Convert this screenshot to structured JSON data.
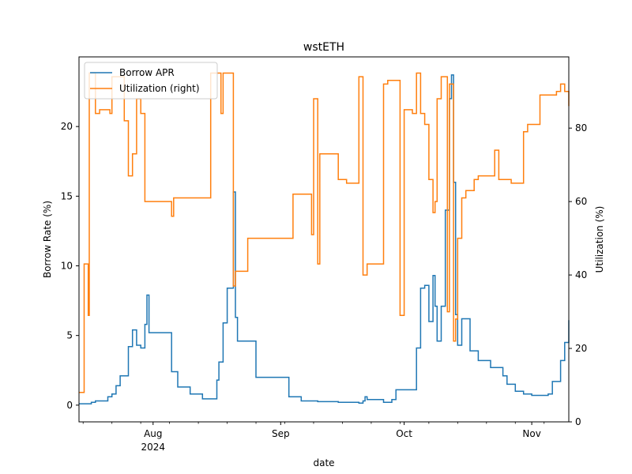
{
  "chart_data": {
    "type": "line",
    "title": "wstETH",
    "xlabel": "date",
    "ylabel_left": "Borrow Rate (%)",
    "ylabel_right": "Utilization (%)",
    "x_range": [
      "2024-07-14",
      "2024-11-10"
    ],
    "ylim_left": [
      -1.2,
      25.0
    ],
    "ylim_right": [
      0,
      99.4
    ],
    "yticks_left": [
      0,
      5,
      10,
      15,
      20
    ],
    "yticks_right": [
      0,
      20,
      40,
      60,
      80
    ],
    "xticks_major": [
      {
        "date": "2024-08-01",
        "label": "Aug",
        "sublabel": "2024"
      },
      {
        "date": "2024-09-01",
        "label": "Sep",
        "sublabel": ""
      },
      {
        "date": "2024-10-01",
        "label": "Oct",
        "sublabel": ""
      },
      {
        "date": "2024-11-01",
        "label": "Nov",
        "sublabel": ""
      }
    ],
    "xticks_minor": [
      "2024-07-15",
      "2024-07-22",
      "2024-07-29",
      "2024-08-05",
      "2024-08-12",
      "2024-08-19",
      "2024-08-26",
      "2024-09-02",
      "2024-09-09",
      "2024-09-16",
      "2024-09-23",
      "2024-09-30",
      "2024-10-07",
      "2024-10-14",
      "2024-10-21",
      "2024-10-28",
      "2024-11-04"
    ],
    "grid": false,
    "legend": {
      "position": "upper-left",
      "entries": [
        "Borrow APR",
        "Utilization (right)"
      ]
    },
    "series": [
      {
        "name": "Borrow APR",
        "axis": "left",
        "color": "#1f77b4",
        "points": [
          [
            "2024-07-14",
            0.1
          ],
          [
            "2024-07-16",
            0.1
          ],
          [
            "2024-07-17",
            0.2
          ],
          [
            "2024-07-18",
            0.3
          ],
          [
            "2024-07-20",
            0.3
          ],
          [
            "2024-07-21",
            0.6
          ],
          [
            "2024-07-22",
            0.8
          ],
          [
            "2024-07-23",
            1.4
          ],
          [
            "2024-07-24",
            2.1
          ],
          [
            "2024-07-25",
            2.1
          ],
          [
            "2024-07-26",
            4.2
          ],
          [
            "2024-07-27",
            5.4
          ],
          [
            "2024-07-28",
            4.3
          ],
          [
            "2024-07-29",
            4.1
          ],
          [
            "2024-07-30",
            5.8
          ],
          [
            "2024-07-30T12",
            7.9
          ],
          [
            "2024-07-31",
            5.2
          ],
          [
            "2024-08-05",
            5.2
          ],
          [
            "2024-08-05T12",
            2.4
          ],
          [
            "2024-08-06",
            2.4
          ],
          [
            "2024-08-07",
            1.3
          ],
          [
            "2024-08-09",
            1.3
          ],
          [
            "2024-08-10",
            0.8
          ],
          [
            "2024-08-12",
            0.8
          ],
          [
            "2024-08-13",
            0.45
          ],
          [
            "2024-08-16",
            0.45
          ],
          [
            "2024-08-16T12",
            1.8
          ],
          [
            "2024-08-17",
            3.1
          ],
          [
            "2024-08-18",
            5.9
          ],
          [
            "2024-08-19",
            8.4
          ],
          [
            "2024-08-20",
            8.4
          ],
          [
            "2024-08-20T12",
            15.3
          ],
          [
            "2024-08-21",
            6.3
          ],
          [
            "2024-08-21T12",
            4.6
          ],
          [
            "2024-08-25",
            4.6
          ],
          [
            "2024-08-26",
            2.0
          ],
          [
            "2024-09-02",
            2.0
          ],
          [
            "2024-09-03",
            0.6
          ],
          [
            "2024-09-05",
            0.6
          ],
          [
            "2024-09-06",
            0.3
          ],
          [
            "2024-09-10",
            0.25
          ],
          [
            "2024-09-13",
            0.25
          ],
          [
            "2024-09-15",
            0.2
          ],
          [
            "2024-09-20",
            0.15
          ],
          [
            "2024-09-21",
            0.3
          ],
          [
            "2024-09-21T12",
            0.6
          ],
          [
            "2024-09-22",
            0.4
          ],
          [
            "2024-09-25",
            0.4
          ],
          [
            "2024-09-26",
            0.2
          ],
          [
            "2024-09-28",
            0.4
          ],
          [
            "2024-09-29",
            1.1
          ],
          [
            "2024-09-30",
            1.1
          ],
          [
            "2024-10-01",
            1.1
          ],
          [
            "2024-10-02",
            1.1
          ],
          [
            "2024-10-03",
            1.1
          ],
          [
            "2024-10-04",
            4.1
          ],
          [
            "2024-10-05",
            8.4
          ],
          [
            "2024-10-06",
            8.6
          ],
          [
            "2024-10-07",
            6.0
          ],
          [
            "2024-10-08",
            9.3
          ],
          [
            "2024-10-08T12",
            7.1
          ],
          [
            "2024-10-09",
            4.6
          ],
          [
            "2024-10-10",
            7.1
          ],
          [
            "2024-10-11",
            14.0
          ],
          [
            "2024-10-12",
            22.0
          ],
          [
            "2024-10-12T12",
            23.7
          ],
          [
            "2024-10-13",
            16.0
          ],
          [
            "2024-10-13T12",
            6.5
          ],
          [
            "2024-10-14",
            4.3
          ],
          [
            "2024-10-15",
            6.2
          ],
          [
            "2024-10-17",
            3.9
          ],
          [
            "2024-10-19",
            3.2
          ],
          [
            "2024-10-22",
            2.7
          ],
          [
            "2024-10-25",
            2.1
          ],
          [
            "2024-10-26",
            1.5
          ],
          [
            "2024-10-28",
            1.0
          ],
          [
            "2024-10-30",
            0.8
          ],
          [
            "2024-11-01",
            0.7
          ],
          [
            "2024-11-05",
            0.8
          ],
          [
            "2024-11-06",
            1.7
          ],
          [
            "2024-11-07",
            1.7
          ],
          [
            "2024-11-08",
            3.2
          ],
          [
            "2024-11-09",
            4.5
          ],
          [
            "2024-11-10",
            6.1
          ]
        ]
      },
      {
        "name": "Utilization (right)",
        "axis": "right",
        "color": "#ff7f0e",
        "points": [
          [
            "2024-07-14",
            8
          ],
          [
            "2024-07-15",
            8
          ],
          [
            "2024-07-15T06",
            43
          ],
          [
            "2024-07-16",
            43
          ],
          [
            "2024-07-16T06",
            29
          ],
          [
            "2024-07-16T12",
            95
          ],
          [
            "2024-07-17",
            95
          ],
          [
            "2024-07-18",
            84
          ],
          [
            "2024-07-19",
            85
          ],
          [
            "2024-07-21",
            85
          ],
          [
            "2024-07-21T12",
            84
          ],
          [
            "2024-07-22",
            94
          ],
          [
            "2024-07-24",
            94
          ],
          [
            "2024-07-25",
            82
          ],
          [
            "2024-07-26",
            67
          ],
          [
            "2024-07-27",
            73
          ],
          [
            "2024-07-28",
            88
          ],
          [
            "2024-07-29",
            84
          ],
          [
            "2024-07-30",
            60
          ],
          [
            "2024-07-31",
            60
          ],
          [
            "2024-08-05",
            60
          ],
          [
            "2024-08-05T12",
            56
          ],
          [
            "2024-08-06",
            61
          ],
          [
            "2024-08-09",
            61
          ],
          [
            "2024-08-10",
            61
          ],
          [
            "2024-08-14",
            61
          ],
          [
            "2024-08-15",
            95
          ],
          [
            "2024-08-17",
            95
          ],
          [
            "2024-08-17T12",
            84
          ],
          [
            "2024-08-18",
            95
          ],
          [
            "2024-08-20",
            95
          ],
          [
            "2024-08-20T12",
            37
          ],
          [
            "2024-08-21",
            41
          ],
          [
            "2024-08-24",
            50
          ],
          [
            "2024-08-25",
            50
          ],
          [
            "2024-08-30",
            50
          ],
          [
            "2024-09-01",
            50
          ],
          [
            "2024-09-02",
            50
          ],
          [
            "2024-09-03",
            50
          ],
          [
            "2024-09-04",
            62
          ],
          [
            "2024-09-08",
            62
          ],
          [
            "2024-09-08T12",
            51
          ],
          [
            "2024-09-09",
            88
          ],
          [
            "2024-09-10",
            43
          ],
          [
            "2024-09-10T12",
            73
          ],
          [
            "2024-09-14",
            73
          ],
          [
            "2024-09-15",
            66
          ],
          [
            "2024-09-17",
            65
          ],
          [
            "2024-09-19",
            65
          ],
          [
            "2024-09-20",
            94
          ],
          [
            "2024-09-21",
            40
          ],
          [
            "2024-09-22",
            43
          ],
          [
            "2024-09-24",
            43
          ],
          [
            "2024-09-26",
            92
          ],
          [
            "2024-09-27",
            93
          ],
          [
            "2024-09-29",
            93
          ],
          [
            "2024-09-30",
            29
          ],
          [
            "2024-10-01",
            85
          ],
          [
            "2024-10-02",
            85
          ],
          [
            "2024-10-03",
            84
          ],
          [
            "2024-10-04",
            95
          ],
          [
            "2024-10-05",
            84
          ],
          [
            "2024-10-06",
            81
          ],
          [
            "2024-10-07",
            66
          ],
          [
            "2024-10-08",
            57
          ],
          [
            "2024-10-08T12",
            60
          ],
          [
            "2024-10-09",
            88
          ],
          [
            "2024-10-10",
            94
          ],
          [
            "2024-10-11",
            94
          ],
          [
            "2024-10-11T12",
            30
          ],
          [
            "2024-10-12",
            92
          ],
          [
            "2024-10-13",
            22
          ],
          [
            "2024-10-13T12",
            28
          ],
          [
            "2024-10-14",
            50
          ],
          [
            "2024-10-15",
            61
          ],
          [
            "2024-10-16",
            63
          ],
          [
            "2024-10-17",
            63
          ],
          [
            "2024-10-18",
            66
          ],
          [
            "2024-10-19",
            67
          ],
          [
            "2024-10-22",
            67
          ],
          [
            "2024-10-23",
            74
          ],
          [
            "2024-10-24",
            66
          ],
          [
            "2024-10-27",
            65
          ],
          [
            "2024-10-28",
            65
          ],
          [
            "2024-10-29",
            65
          ],
          [
            "2024-10-30",
            79
          ],
          [
            "2024-10-31",
            81
          ],
          [
            "2024-11-01",
            81
          ],
          [
            "2024-11-02",
            81
          ],
          [
            "2024-11-03",
            89
          ],
          [
            "2024-11-06",
            89
          ],
          [
            "2024-11-07",
            90
          ],
          [
            "2024-11-08",
            92
          ],
          [
            "2024-11-09",
            90
          ],
          [
            "2024-11-10",
            86
          ]
        ]
      }
    ]
  }
}
